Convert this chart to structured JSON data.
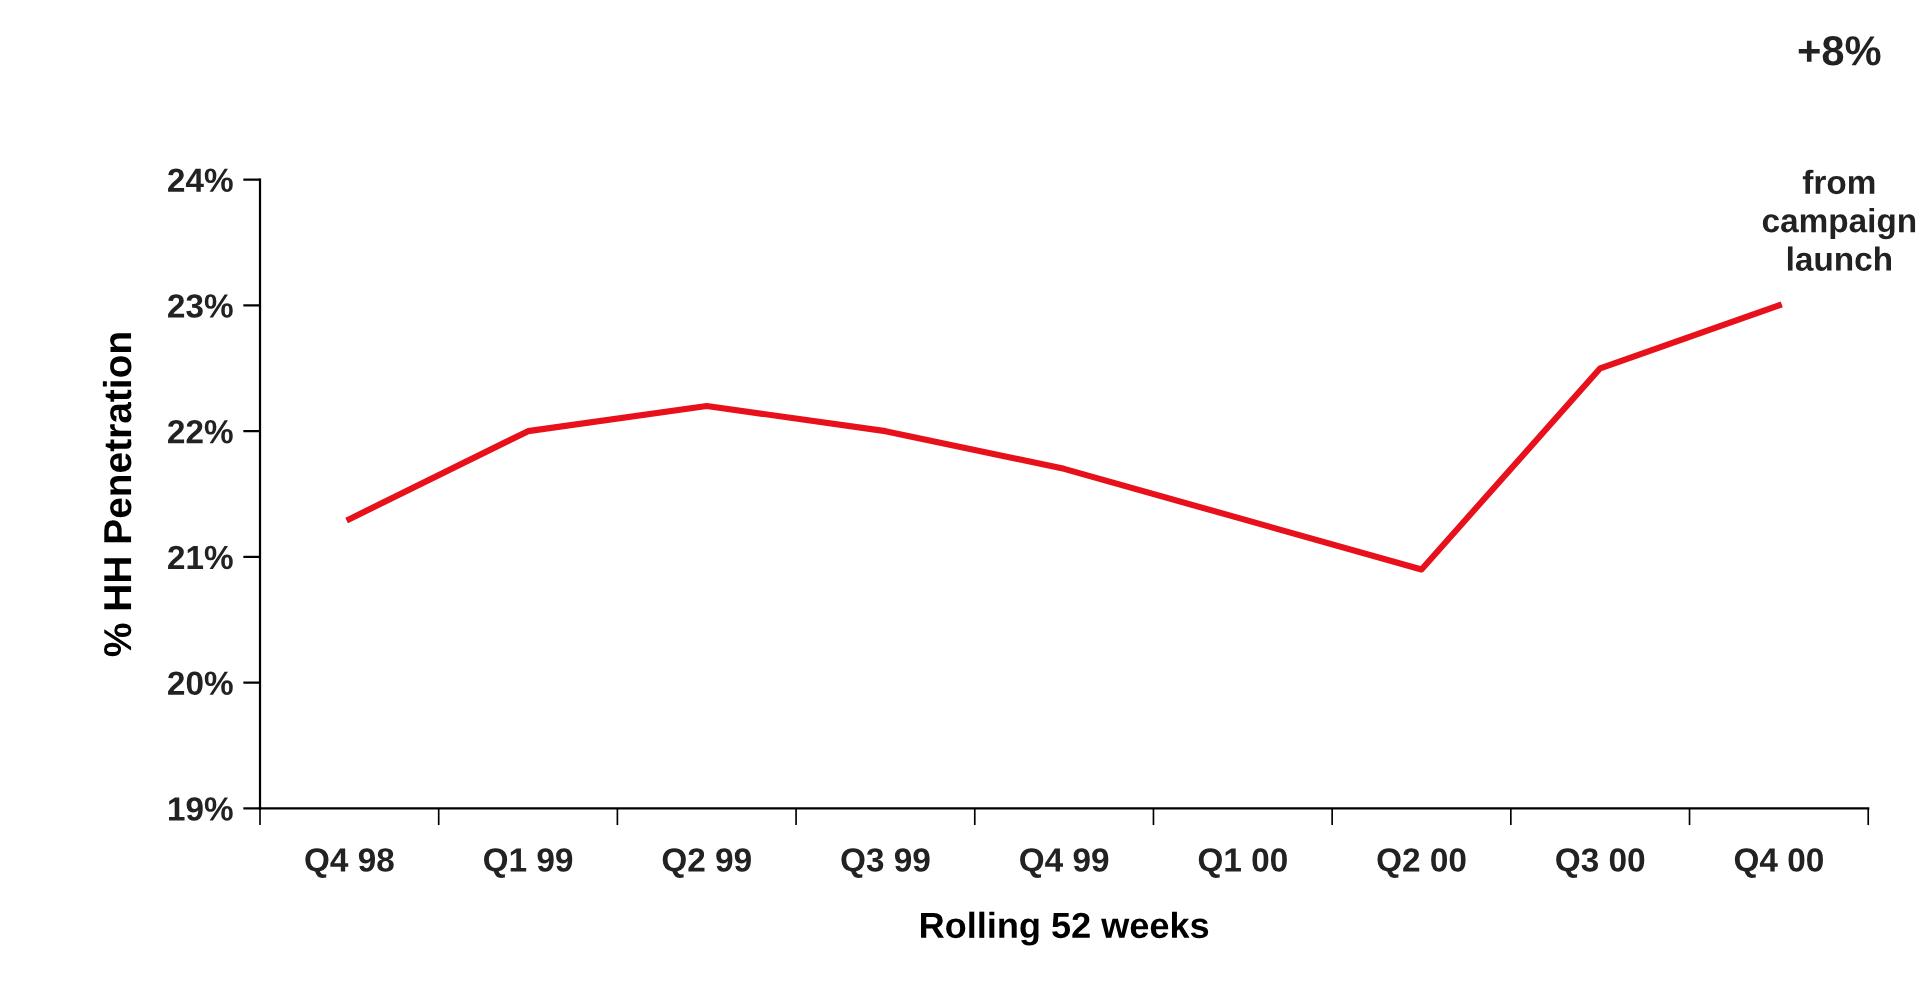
{
  "chart_data": {
    "type": "line",
    "xlabel": "Rolling 52 weeks",
    "ylabel": "% HH Penetration",
    "categories": [
      "Q4 98",
      "Q1 99",
      "Q2 99",
      "Q3 99",
      "Q4 99",
      "Q1 00",
      "Q2 00",
      "Q3 00",
      "Q4 00"
    ],
    "series": [
      {
        "color": "#e8101a",
        "values": [
          21.3,
          22.0,
          22.2,
          22.0,
          21.7,
          21.3,
          20.9,
          22.5,
          23.0
        ]
      }
    ],
    "ylim": [
      19,
      24
    ],
    "yticks": [
      {
        "value": 19,
        "label": "19%"
      },
      {
        "value": 20,
        "label": "20%"
      },
      {
        "value": 21,
        "label": "21%"
      },
      {
        "value": 22,
        "label": "22%"
      },
      {
        "value": 23,
        "label": "23%"
      },
      {
        "value": 24,
        "label": "24%"
      }
    ],
    "annotations": [
      "+8%",
      "from\ncampaign\nlaunch"
    ],
    "grid": false,
    "legend": false,
    "marker": "none",
    "line_style": "solid"
  }
}
